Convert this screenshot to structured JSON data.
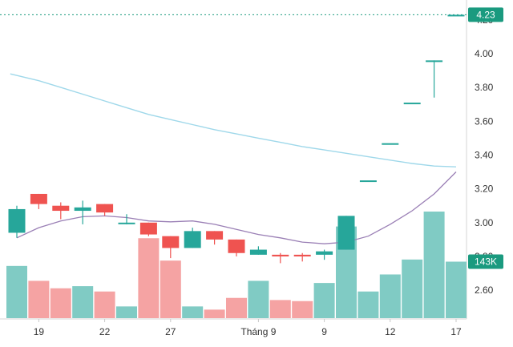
{
  "chart_data": {
    "type": "candlestick",
    "title": "",
    "xlabel": "",
    "ylabel": "",
    "ylim": [
      2.43,
      4.27
    ],
    "grid": false,
    "colors": {
      "up": "#26a69a",
      "down": "#ef5350",
      "up_volume": "#80cbc4",
      "down_volume": "#f5a3a3",
      "ma_long": "#9fd8ea",
      "ma_short": "#9a7fb5",
      "last_price": "#1a9a7f",
      "volume_tag": "#1a9a7f"
    },
    "y_ticks": [
      "2.60",
      "2.80",
      "3.00",
      "3.20",
      "3.40",
      "3.60",
      "3.80",
      "4.00",
      "4.20"
    ],
    "x_ticks": [
      {
        "index": 1,
        "label": "19"
      },
      {
        "index": 4,
        "label": "22"
      },
      {
        "index": 7,
        "label": "27"
      },
      {
        "index": 11,
        "label": "Tháng 9"
      },
      {
        "index": 14,
        "label": "9"
      },
      {
        "index": 17,
        "label": "12"
      },
      {
        "index": 20,
        "label": "17"
      }
    ],
    "candles": [
      {
        "o": 2.94,
        "h": 3.1,
        "l": 2.91,
        "c": 3.08
      },
      {
        "o": 3.17,
        "h": 3.17,
        "l": 3.08,
        "c": 3.11
      },
      {
        "o": 3.1,
        "h": 3.12,
        "l": 3.02,
        "c": 3.07
      },
      {
        "o": 3.07,
        "h": 3.13,
        "l": 2.99,
        "c": 3.09
      },
      {
        "o": 3.11,
        "h": 3.11,
        "l": 3.04,
        "c": 3.06
      },
      {
        "o": 3.0,
        "h": 3.05,
        "l": 2.99,
        "c": 3.0
      },
      {
        "o": 3.0,
        "h": 3.0,
        "l": 2.92,
        "c": 2.93
      },
      {
        "o": 2.92,
        "h": 2.92,
        "l": 2.79,
        "c": 2.85
      },
      {
        "o": 2.85,
        "h": 2.97,
        "l": 2.85,
        "c": 2.95
      },
      {
        "o": 2.95,
        "h": 2.95,
        "l": 2.87,
        "c": 2.9
      },
      {
        "o": 2.9,
        "h": 2.9,
        "l": 2.8,
        "c": 2.82
      },
      {
        "o": 2.81,
        "h": 2.86,
        "l": 2.81,
        "c": 2.84
      },
      {
        "o": 2.81,
        "h": 2.82,
        "l": 2.76,
        "c": 2.8
      },
      {
        "o": 2.81,
        "h": 2.82,
        "l": 2.77,
        "c": 2.8
      },
      {
        "o": 2.81,
        "h": 2.84,
        "l": 2.78,
        "c": 2.83
      },
      {
        "o": 2.84,
        "h": 3.04,
        "l": 2.84,
        "c": 3.04
      },
      {
        "o": 3.25,
        "h": 3.25,
        "l": 3.25,
        "c": 3.25
      },
      {
        "o": 3.47,
        "h": 3.47,
        "l": 3.47,
        "c": 3.47
      },
      {
        "o": 3.71,
        "h": 3.71,
        "l": 3.71,
        "c": 3.71
      },
      {
        "o": 3.96,
        "h": 3.96,
        "l": 3.74,
        "c": 3.96
      },
      {
        "o": 4.23,
        "h": 4.23,
        "l": 4.23,
        "c": 4.23
      }
    ],
    "volume": [
      {
        "value": 0.49,
        "dir": "up"
      },
      {
        "value": 0.35,
        "dir": "down"
      },
      {
        "value": 0.28,
        "dir": "down"
      },
      {
        "value": 0.3,
        "dir": "up"
      },
      {
        "value": 0.25,
        "dir": "down"
      },
      {
        "value": 0.11,
        "dir": "up"
      },
      {
        "value": 0.75,
        "dir": "down"
      },
      {
        "value": 0.54,
        "dir": "down"
      },
      {
        "value": 0.11,
        "dir": "up"
      },
      {
        "value": 0.08,
        "dir": "down"
      },
      {
        "value": 0.19,
        "dir": "down"
      },
      {
        "value": 0.35,
        "dir": "up"
      },
      {
        "value": 0.17,
        "dir": "down"
      },
      {
        "value": 0.16,
        "dir": "down"
      },
      {
        "value": 0.33,
        "dir": "up"
      },
      {
        "value": 0.86,
        "dir": "up"
      },
      {
        "value": 0.25,
        "dir": "up"
      },
      {
        "value": 0.41,
        "dir": "up"
      },
      {
        "value": 0.55,
        "dir": "up"
      },
      {
        "value": 1.0,
        "dir": "up"
      },
      {
        "value": 0.53,
        "dir": "up"
      }
    ],
    "ma_long": [
      {
        "x": -0.3,
        "y": 3.88
      },
      {
        "x": 1,
        "y": 3.84
      },
      {
        "x": 2,
        "y": 3.8
      },
      {
        "x": 3,
        "y": 3.76
      },
      {
        "x": 4,
        "y": 3.72
      },
      {
        "x": 5,
        "y": 3.68
      },
      {
        "x": 6,
        "y": 3.64
      },
      {
        "x": 7,
        "y": 3.61
      },
      {
        "x": 8,
        "y": 3.58
      },
      {
        "x": 9,
        "y": 3.55
      },
      {
        "x": 10,
        "y": 3.525
      },
      {
        "x": 11,
        "y": 3.5
      },
      {
        "x": 12,
        "y": 3.475
      },
      {
        "x": 13,
        "y": 3.45
      },
      {
        "x": 14,
        "y": 3.43
      },
      {
        "x": 15,
        "y": 3.41
      },
      {
        "x": 16,
        "y": 3.39
      },
      {
        "x": 17,
        "y": 3.37
      },
      {
        "x": 18,
        "y": 3.35
      },
      {
        "x": 19,
        "y": 3.335
      },
      {
        "x": 20,
        "y": 3.33
      }
    ],
    "ma_short": [
      {
        "x": 0,
        "y": 2.91
      },
      {
        "x": 1,
        "y": 2.97
      },
      {
        "x": 2,
        "y": 3.01
      },
      {
        "x": 3,
        "y": 3.035
      },
      {
        "x": 4,
        "y": 3.04
      },
      {
        "x": 5,
        "y": 3.03
      },
      {
        "x": 6,
        "y": 3.01
      },
      {
        "x": 7,
        "y": 3.005
      },
      {
        "x": 8,
        "y": 3.01
      },
      {
        "x": 9,
        "y": 2.99
      },
      {
        "x": 10,
        "y": 2.96
      },
      {
        "x": 11,
        "y": 2.93
      },
      {
        "x": 12,
        "y": 2.91
      },
      {
        "x": 13,
        "y": 2.885
      },
      {
        "x": 14,
        "y": 2.875
      },
      {
        "x": 15,
        "y": 2.885
      },
      {
        "x": 16,
        "y": 2.92
      },
      {
        "x": 17,
        "y": 2.99
      },
      {
        "x": 18,
        "y": 3.07
      },
      {
        "x": 19,
        "y": 3.17
      },
      {
        "x": 20,
        "y": 3.3
      }
    ],
    "last_price": {
      "value": 4.23,
      "label": "4.23"
    },
    "volume_label": "143K"
  }
}
